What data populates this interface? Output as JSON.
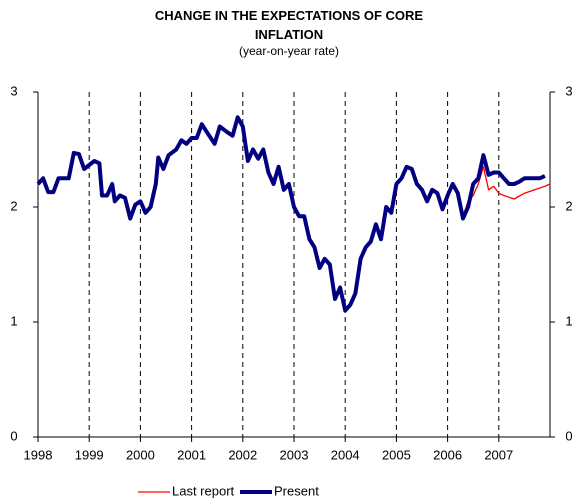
{
  "chart_data": {
    "type": "line",
    "title": "CHANGE IN THE EXPECTATIONS OF CORE INFLATION",
    "subtitle": "(year-on-year rate)",
    "xlim": [
      1998,
      2008
    ],
    "xticks": [
      1998,
      1999,
      2000,
      2001,
      2002,
      2003,
      2004,
      2005,
      2006,
      2007
    ],
    "ylim": [
      0,
      3
    ],
    "yticks": [
      0,
      1,
      2,
      3
    ],
    "y2lim": [
      0,
      3
    ],
    "y2ticks": [
      0,
      1,
      2,
      3
    ],
    "grid": "x-dashed",
    "legend": "bottom",
    "series": [
      {
        "name": "Last report",
        "color": "#ff0000",
        "x": [
          2006.3,
          2006.4,
          2006.5,
          2006.6,
          2006.7,
          2006.8,
          2006.9,
          2007.0,
          2007.1,
          2007.3,
          2007.5,
          2007.7,
          2007.9,
          2008.0
        ],
        "values": [
          1.92,
          2.05,
          2.1,
          2.2,
          2.35,
          2.15,
          2.18,
          2.12,
          2.1,
          2.07,
          2.12,
          2.15,
          2.18,
          2.2
        ]
      },
      {
        "name": "Present",
        "color": "#000080",
        "x": [
          1998.0,
          1998.1,
          1998.2,
          1998.3,
          1998.4,
          1998.6,
          1998.7,
          1998.8,
          1998.9,
          1999.1,
          1999.2,
          1999.25,
          1999.35,
          1999.45,
          1999.5,
          1999.6,
          1999.7,
          1999.8,
          1999.9,
          2000.0,
          2000.1,
          2000.2,
          2000.3,
          2000.35,
          2000.45,
          2000.55,
          2000.7,
          2000.8,
          2000.9,
          2001.0,
          2001.1,
          2001.2,
          2001.3,
          2001.45,
          2001.55,
          2001.7,
          2001.8,
          2001.9,
          2002.0,
          2002.1,
          2002.2,
          2002.3,
          2002.4,
          2002.5,
          2002.6,
          2002.7,
          2002.8,
          2002.9,
          2003.0,
          2003.1,
          2003.2,
          2003.3,
          2003.4,
          2003.5,
          2003.6,
          2003.7,
          2003.8,
          2003.9,
          2004.0,
          2004.1,
          2004.2,
          2004.3,
          2004.4,
          2004.5,
          2004.6,
          2004.7,
          2004.8,
          2004.9,
          2005.0,
          2005.1,
          2005.2,
          2005.3,
          2005.4,
          2005.5,
          2005.6,
          2005.7,
          2005.8,
          2005.9,
          2006.0,
          2006.1,
          2006.2,
          2006.3,
          2006.4,
          2006.5,
          2006.6,
          2006.7,
          2006.8,
          2006.9,
          2007.0,
          2007.1,
          2007.2,
          2007.3,
          2007.4,
          2007.5,
          2007.6,
          2007.7,
          2007.8,
          2007.9
        ],
        "values": [
          2.2,
          2.25,
          2.13,
          2.13,
          2.25,
          2.25,
          2.47,
          2.46,
          2.33,
          2.4,
          2.38,
          2.1,
          2.1,
          2.2,
          2.05,
          2.1,
          2.08,
          1.9,
          2.02,
          2.05,
          1.95,
          2.0,
          2.2,
          2.43,
          2.33,
          2.45,
          2.5,
          2.58,
          2.55,
          2.6,
          2.6,
          2.72,
          2.65,
          2.55,
          2.7,
          2.65,
          2.62,
          2.78,
          2.7,
          2.4,
          2.5,
          2.42,
          2.5,
          2.3,
          2.2,
          2.35,
          2.15,
          2.2,
          2.0,
          1.92,
          1.92,
          1.72,
          1.65,
          1.47,
          1.55,
          1.5,
          1.2,
          1.3,
          1.1,
          1.15,
          1.25,
          1.55,
          1.65,
          1.7,
          1.85,
          1.72,
          2.0,
          1.95,
          2.2,
          2.25,
          2.35,
          2.33,
          2.2,
          2.15,
          2.05,
          2.15,
          2.12,
          1.98,
          2.1,
          2.2,
          2.12,
          1.9,
          2.0,
          2.2,
          2.25,
          2.45,
          2.28,
          2.3,
          2.3,
          2.25,
          2.2,
          2.2,
          2.22,
          2.25,
          2.25,
          2.25,
          2.25,
          2.27
        ]
      }
    ]
  }
}
